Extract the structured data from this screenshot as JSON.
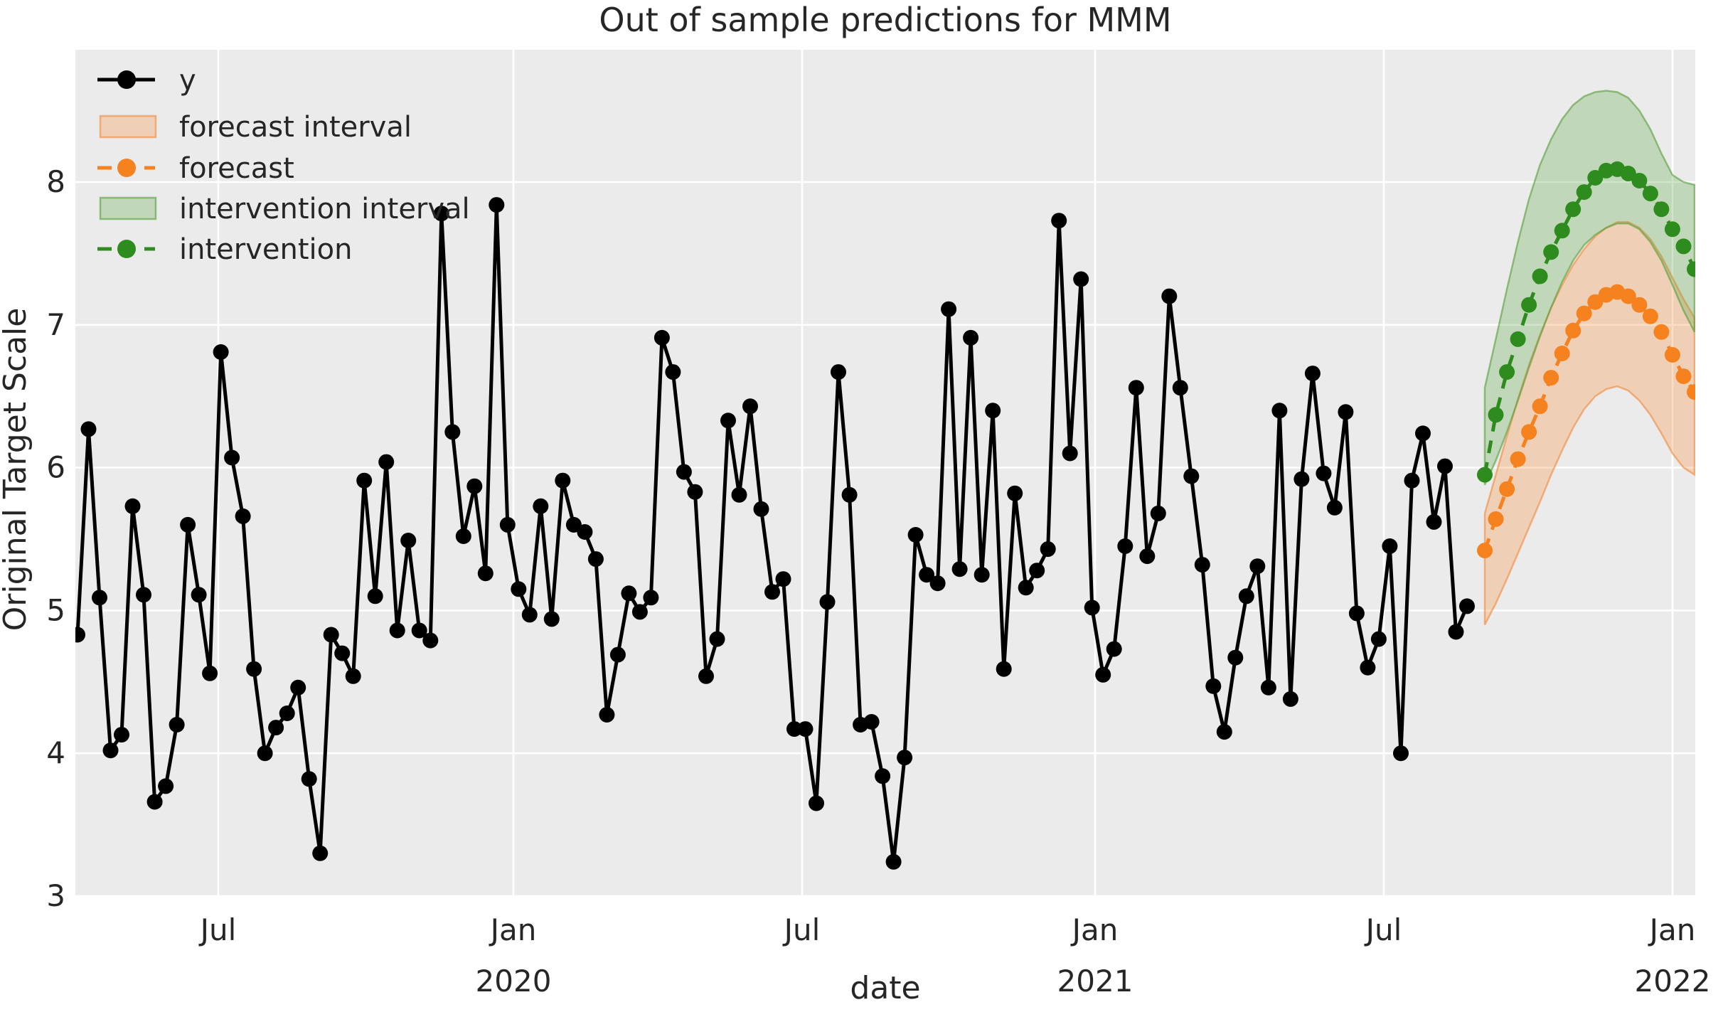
{
  "title": "Out of sample predictions for MMM",
  "axes": {
    "xlabel": "date",
    "ylabel": "Original Target Scale"
  },
  "legend": {
    "items": [
      {
        "label": "y",
        "kind": "solid-line-marker",
        "color": "#000000"
      },
      {
        "label": "forecast interval",
        "kind": "band",
        "color": "#f5821e"
      },
      {
        "label": "forecast",
        "kind": "dashed-line-marker",
        "color": "#f5821e"
      },
      {
        "label": "intervention interval",
        "kind": "band",
        "color": "#44961e"
      },
      {
        "label": "intervention",
        "kind": "dashed-line-marker",
        "color": "#2e8b1e"
      }
    ]
  },
  "chart_data": {
    "type": "line",
    "title": "Out of sample predictions for MMM",
    "xlabel": "date",
    "ylabel": "Original Target Scale",
    "ylim": [
      3,
      8.95
    ],
    "grid": true,
    "legend_position": "upper left",
    "background": "#ebebeb",
    "gridline_color": "#ffffff",
    "y_tick_labels": [
      "3",
      "4",
      "5",
      "6",
      "7",
      "8"
    ],
    "y_tick_values": [
      3,
      4,
      5,
      6,
      7,
      8
    ],
    "x_tick_labels": [
      "Jul",
      "Jan 2020",
      "Jul",
      "Jan 2021",
      "Jul",
      "Jan 2022"
    ],
    "x_ticks_two_line": [
      {
        "line1": "Jul",
        "line2": ""
      },
      {
        "line1": "Jan",
        "line2": "2020"
      },
      {
        "line1": "Jul",
        "line2": ""
      },
      {
        "line1": "Jan",
        "line2": "2021"
      },
      {
        "line1": "Jul",
        "line2": ""
      },
      {
        "line1": "Jan",
        "line2": "2022"
      }
    ],
    "series": [
      {
        "name": "y",
        "type": "line",
        "marker": "circle",
        "linestyle": "solid",
        "color": "#000000",
        "values": [
          4.83,
          6.27,
          5.09,
          4.02,
          4.13,
          5.73,
          5.11,
          3.66,
          3.77,
          4.2,
          5.6,
          5.11,
          4.56,
          6.81,
          6.07,
          5.66,
          4.59,
          4.0,
          4.18,
          4.28,
          4.46,
          3.82,
          3.3,
          4.83,
          4.7,
          4.54,
          5.91,
          5.1,
          6.04,
          4.86,
          5.49,
          4.86,
          4.79,
          7.78,
          6.25,
          5.52,
          5.87,
          5.26,
          7.84,
          5.6,
          5.15,
          4.97,
          5.73,
          4.94,
          5.91,
          5.6,
          5.55,
          5.36,
          4.27,
          4.69,
          5.12,
          4.99,
          5.09,
          6.91,
          6.67,
          5.97,
          5.83,
          4.54,
          4.8,
          6.33,
          5.81,
          6.43,
          5.71,
          5.13,
          5.22,
          4.17,
          4.17,
          3.65,
          5.06,
          6.67,
          5.81,
          4.2,
          4.22,
          3.84,
          3.24,
          3.97,
          5.53,
          5.25,
          5.19,
          7.11,
          5.29,
          6.91,
          5.25,
          6.4,
          4.59,
          5.82,
          5.16,
          5.28,
          5.43,
          7.73,
          6.1,
          7.32,
          5.02,
          4.55,
          4.73,
          5.45,
          6.56,
          5.38,
          5.68,
          7.2,
          6.56,
          5.94,
          5.32,
          4.47,
          4.15,
          4.67,
          5.1,
          5.31,
          4.46,
          6.4,
          4.38,
          5.92,
          6.66,
          5.96,
          5.72,
          6.39,
          4.98,
          4.6,
          4.8,
          5.45,
          4.0,
          5.91,
          6.24,
          5.62,
          6.01,
          4.85,
          5.03
        ]
      },
      {
        "name": "forecast interval",
        "type": "band",
        "color": "#f5821e",
        "lower": [
          4.9,
          5.05,
          5.22,
          5.4,
          5.58,
          5.76,
          5.95,
          6.12,
          6.28,
          6.41,
          6.5,
          6.55,
          6.57,
          6.54,
          6.47,
          6.37,
          6.24,
          6.1,
          6.0,
          5.95
        ],
        "upper": [
          5.68,
          5.95,
          6.22,
          6.48,
          6.72,
          6.93,
          7.12,
          7.28,
          7.42,
          7.53,
          7.62,
          7.68,
          7.72,
          7.72,
          7.68,
          7.6,
          7.48,
          7.33,
          7.18,
          7.05
        ]
      },
      {
        "name": "forecast",
        "type": "line",
        "marker": "circle",
        "linestyle": "dashed",
        "color": "#f5821e",
        "values": [
          5.42,
          5.64,
          5.85,
          6.06,
          6.25,
          6.43,
          6.63,
          6.8,
          6.96,
          7.08,
          7.16,
          7.21,
          7.23,
          7.2,
          7.14,
          7.06,
          6.95,
          6.79,
          6.64,
          6.53
        ]
      },
      {
        "name": "intervention interval",
        "type": "band",
        "color": "#44961e",
        "lower": [
          5.88,
          6.05,
          6.25,
          6.47,
          6.7,
          6.92,
          7.12,
          7.3,
          7.45,
          7.56,
          7.63,
          7.68,
          7.71,
          7.71,
          7.67,
          7.58,
          7.45,
          7.28,
          7.1,
          6.95
        ],
        "upper": [
          6.56,
          6.9,
          7.25,
          7.58,
          7.88,
          8.12,
          8.3,
          8.44,
          8.54,
          8.6,
          8.63,
          8.64,
          8.63,
          8.59,
          8.5,
          8.37,
          8.2,
          8.05,
          8.0,
          7.98
        ]
      },
      {
        "name": "intervention",
        "type": "line",
        "marker": "circle",
        "linestyle": "dashed",
        "color": "#2e8b1e",
        "values": [
          5.95,
          6.37,
          6.67,
          6.9,
          7.14,
          7.34,
          7.51,
          7.66,
          7.81,
          7.93,
          8.03,
          8.08,
          8.09,
          8.06,
          8.01,
          7.92,
          7.81,
          7.67,
          7.55,
          7.39
        ]
      }
    ]
  }
}
